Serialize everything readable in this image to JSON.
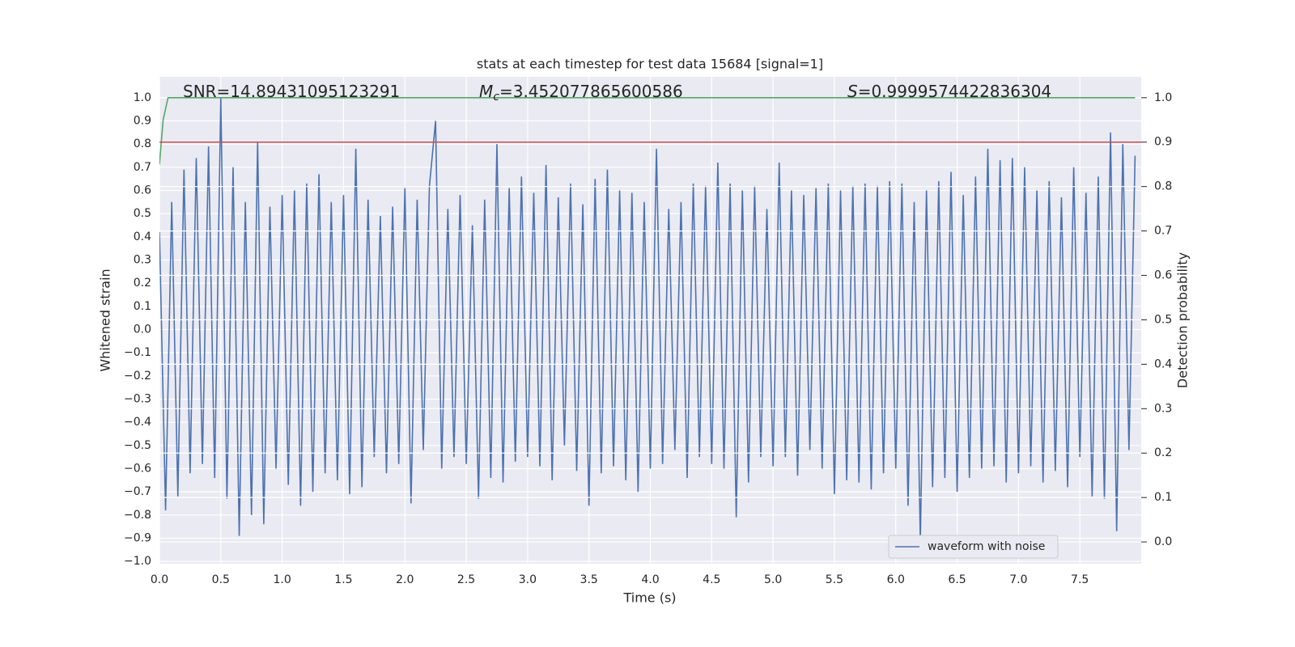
{
  "chart_data": {
    "type": "line",
    "title": "stats at each timestep for test data 15684 [signal=1]",
    "xlabel": "Time (s)",
    "ylabel": "Whitened strain",
    "y2label": "Detection probability",
    "annotations": [
      {
        "parts": [
          "SNR=14.89431095123291"
        ]
      },
      {
        "parts": [
          "M",
          "c",
          "=3.452077865600586"
        ]
      },
      {
        "parts": [
          "S",
          "=0.9999574422836304"
        ]
      }
    ],
    "xlim": [
      0,
      8
    ],
    "ylim": [
      -1.01,
      1.09
    ],
    "y2lim": [
      -0.049,
      1.047
    ],
    "xticks": [
      {
        "value": 0,
        "label": "0.0"
      },
      {
        "value": 0.5,
        "label": "0.5"
      },
      {
        "value": 1,
        "label": "1.0"
      },
      {
        "value": 1.5,
        "label": "1.5"
      },
      {
        "value": 2,
        "label": "2.0"
      },
      {
        "value": 2.5,
        "label": "2.5"
      },
      {
        "value": 3,
        "label": "3.0"
      },
      {
        "value": 3.5,
        "label": "3.5"
      },
      {
        "value": 4,
        "label": "4.0"
      },
      {
        "value": 4.5,
        "label": "4.5"
      },
      {
        "value": 5,
        "label": "5.0"
      },
      {
        "value": 5.5,
        "label": "5.5"
      },
      {
        "value": 6,
        "label": "6.0"
      },
      {
        "value": 6.5,
        "label": "6.5"
      },
      {
        "value": 7,
        "label": "7.0"
      },
      {
        "value": 7.5,
        "label": "7.5"
      }
    ],
    "yticks": [
      {
        "value": -1,
        "label": "−1.0"
      },
      {
        "value": -0.9,
        "label": "−0.9"
      },
      {
        "value": -0.8,
        "label": "−0.8"
      },
      {
        "value": -0.7,
        "label": "−0.7"
      },
      {
        "value": -0.6,
        "label": "−0.6"
      },
      {
        "value": -0.5,
        "label": "−0.5"
      },
      {
        "value": -0.4,
        "label": "−0.4"
      },
      {
        "value": -0.3,
        "label": "−0.3"
      },
      {
        "value": -0.2,
        "label": "−0.2"
      },
      {
        "value": -0.1,
        "label": "−0.1"
      },
      {
        "value": 0,
        "label": "0.0"
      },
      {
        "value": 0.1,
        "label": "0.1"
      },
      {
        "value": 0.2,
        "label": "0.2"
      },
      {
        "value": 0.3,
        "label": "0.3"
      },
      {
        "value": 0.4,
        "label": "0.4"
      },
      {
        "value": 0.5,
        "label": "0.5"
      },
      {
        "value": 0.6,
        "label": "0.6"
      },
      {
        "value": 0.7,
        "label": "0.7"
      },
      {
        "value": 0.8,
        "label": "0.8"
      },
      {
        "value": 0.9,
        "label": "0.9"
      },
      {
        "value": 1,
        "label": "1.0"
      }
    ],
    "y2ticks": [
      {
        "value": 0,
        "label": "0.0"
      },
      {
        "value": 0.1,
        "label": "0.1"
      },
      {
        "value": 0.2,
        "label": "0.2"
      },
      {
        "value": 0.3,
        "label": "0.3"
      },
      {
        "value": 0.4,
        "label": "0.4"
      },
      {
        "value": 0.5,
        "label": "0.5"
      },
      {
        "value": 0.6,
        "label": "0.6"
      },
      {
        "value": 0.7,
        "label": "0.7"
      },
      {
        "value": 0.8,
        "label": "0.8"
      },
      {
        "value": 0.9,
        "label": "0.9"
      },
      {
        "value": 1,
        "label": "1.0"
      }
    ],
    "grid": true,
    "legend": "lower right",
    "series": [
      {
        "name": "waveform with noise",
        "color": "#4c72b0",
        "x": [
          0,
          0.05,
          0.1,
          0.15,
          0.2,
          0.25,
          0.3,
          0.35,
          0.4,
          0.45,
          0.5,
          0.55,
          0.6,
          0.65,
          0.7,
          0.75,
          0.8,
          0.85,
          0.9,
          0.95,
          1,
          1.05,
          1.1,
          1.15,
          1.2,
          1.25,
          1.3,
          1.35,
          1.4,
          1.45,
          1.5,
          1.55,
          1.6,
          1.65,
          1.7,
          1.75,
          1.8,
          1.85,
          1.9,
          1.95,
          2,
          2.05,
          2.1,
          2.15,
          2.2,
          2.25,
          2.3,
          2.35,
          2.4,
          2.45,
          2.5,
          2.55,
          2.6,
          2.65,
          2.7,
          2.75,
          2.8,
          2.85,
          2.9,
          2.95,
          3,
          3.05,
          3.1,
          3.15,
          3.2,
          3.25,
          3.3,
          3.35,
          3.4,
          3.45,
          3.5,
          3.55,
          3.6,
          3.65,
          3.7,
          3.75,
          3.8,
          3.85,
          3.9,
          3.95,
          4,
          4.05,
          4.1,
          4.15,
          4.2,
          4.25,
          4.3,
          4.35,
          4.4,
          4.45,
          4.5,
          4.55,
          4.6,
          4.65,
          4.7,
          4.75,
          4.8,
          4.85,
          4.9,
          4.95,
          5,
          5.05,
          5.1,
          5.15,
          5.2,
          5.25,
          5.3,
          5.35,
          5.4,
          5.45,
          5.5,
          5.55,
          5.6,
          5.65,
          5.7,
          5.75,
          5.8,
          5.85,
          5.9,
          5.95,
          6,
          6.05,
          6.1,
          6.15,
          6.2,
          6.25,
          6.3,
          6.35,
          6.4,
          6.45,
          6.5,
          6.55,
          6.6,
          6.65,
          6.7,
          6.75,
          6.8,
          6.85,
          6.9,
          6.95,
          7,
          7.05,
          7.1,
          7.15,
          7.2,
          7.25,
          7.3,
          7.35,
          7.4,
          7.45,
          7.5,
          7.55,
          7.6,
          7.65,
          7.7,
          7.75,
          7.8,
          7.85,
          7.9,
          7.95
        ],
        "values": [
          0.42,
          -0.78,
          0.55,
          -0.72,
          0.69,
          -0.62,
          0.74,
          -0.58,
          0.79,
          -0.64,
          1.0,
          -0.73,
          0.7,
          -0.89,
          0.55,
          -0.8,
          0.81,
          -0.84,
          0.53,
          -0.6,
          0.58,
          -0.67,
          0.6,
          -0.76,
          0.63,
          -0.7,
          0.67,
          -0.62,
          0.55,
          -0.65,
          0.58,
          -0.71,
          0.78,
          -0.68,
          0.56,
          -0.55,
          0.49,
          -0.62,
          0.53,
          -0.58,
          0.61,
          -0.75,
          0.56,
          -0.52,
          0.62,
          0.9,
          -0.6,
          0.52,
          -0.55,
          0.58,
          -0.58,
          0.45,
          -0.73,
          0.56,
          -0.64,
          0.8,
          -0.66,
          0.61,
          -0.57,
          0.66,
          -0.55,
          0.59,
          -0.59,
          0.71,
          -0.65,
          0.57,
          -0.5,
          0.63,
          -0.61,
          0.54,
          -0.76,
          0.65,
          -0.62,
          0.69,
          -0.59,
          0.6,
          -0.65,
          0.59,
          -0.7,
          0.55,
          -0.6,
          0.78,
          -0.58,
          0.52,
          -0.52,
          0.55,
          -0.64,
          0.63,
          -0.55,
          0.62,
          -0.58,
          0.72,
          -0.6,
          0.63,
          -0.81,
          0.6,
          -0.66,
          0.62,
          -0.55,
          0.52,
          -0.59,
          0.72,
          -0.55,
          0.6,
          -0.63,
          0.58,
          -0.52,
          0.61,
          -0.6,
          0.63,
          -0.71,
          0.6,
          -0.65,
          0.62,
          -0.66,
          0.63,
          -0.69,
          0.62,
          -0.62,
          0.64,
          -0.6,
          0.63,
          -0.76,
          0.55,
          -0.91,
          0.6,
          -0.68,
          0.64,
          -0.64,
          0.68,
          -0.7,
          0.58,
          -0.64,
          0.66,
          -0.6,
          0.78,
          -0.59,
          0.73,
          -0.66,
          0.74,
          -0.62,
          0.7,
          -0.59,
          0.6,
          -0.66,
          0.64,
          -0.61,
          0.57,
          -0.68,
          0.7,
          -0.55,
          0.59,
          -0.72,
          0.66,
          -0.73,
          0.85,
          -0.87,
          0.8,
          -0.52,
          0.75
        ]
      },
      {
        "color": "#55a868",
        "axis": "y2",
        "x": [
          0,
          0.03,
          0.07,
          7.95
        ],
        "values": [
          0.85,
          0.95,
          1.0,
          1.0
        ]
      }
    ],
    "threshold": {
      "value": 0.9,
      "axis": "y2",
      "color": "#c44e52"
    }
  }
}
